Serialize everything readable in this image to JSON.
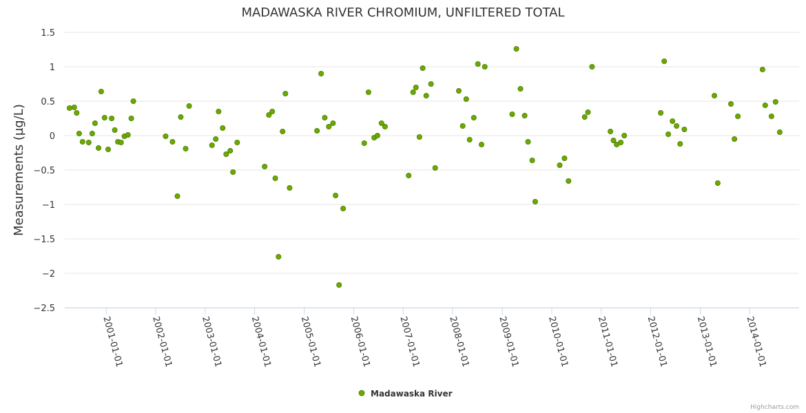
{
  "chart_data": {
    "type": "scatter",
    "title": "MADAWASKA RIVER CHROMIUM, UNFILTERED TOTAL",
    "xlabel": "",
    "ylabel": "Measurements (µg/L)",
    "ylim": [
      -2.5,
      1.5
    ],
    "yticks": [
      1.5,
      1,
      0.5,
      0,
      -0.5,
      -1,
      -1.5,
      -2,
      -2.5
    ],
    "ytick_labels": [
      "1.5",
      "1",
      "0.5",
      "0",
      "−0.5",
      "−1",
      "−1.5",
      "−2",
      "−2.5"
    ],
    "xlim": [
      "2000-03-01",
      "2014-12-31"
    ],
    "xticks": [
      "2001-01-01",
      "2002-01-01",
      "2003-01-01",
      "2004-01-01",
      "2005-01-01",
      "2006-01-01",
      "2007-01-01",
      "2008-01-01",
      "2009-01-01",
      "2010-01-01",
      "2011-01-01",
      "2012-01-01",
      "2013-01-01",
      "2014-01-01"
    ],
    "grid": true,
    "legend_position": "bottom-center",
    "color": "#6aaa00",
    "series": [
      {
        "name": "Madawaska River",
        "points": [
          [
            "2000-04-05",
            0.4
          ],
          [
            "2000-05-10",
            0.41
          ],
          [
            "2000-05-28",
            0.33
          ],
          [
            "2000-06-15",
            0.03
          ],
          [
            "2000-07-10",
            -0.09
          ],
          [
            "2000-08-25",
            -0.1
          ],
          [
            "2000-09-20",
            0.03
          ],
          [
            "2000-10-10",
            0.18
          ],
          [
            "2000-11-05",
            -0.18
          ],
          [
            "2000-11-25",
            0.64
          ],
          [
            "2000-12-20",
            0.26
          ],
          [
            "2001-01-15",
            -0.2
          ],
          [
            "2001-02-10",
            0.25
          ],
          [
            "2001-03-05",
            0.08
          ],
          [
            "2001-03-28",
            -0.09
          ],
          [
            "2001-04-20",
            -0.1
          ],
          [
            "2001-05-15",
            -0.01
          ],
          [
            "2001-06-10",
            0.01
          ],
          [
            "2001-07-05",
            0.25
          ],
          [
            "2001-07-20",
            0.5
          ],
          [
            "2002-03-15",
            -0.01
          ],
          [
            "2002-05-05",
            -0.09
          ],
          [
            "2002-06-10",
            -0.88
          ],
          [
            "2002-07-05",
            0.27
          ],
          [
            "2002-08-10",
            -0.19
          ],
          [
            "2002-09-05",
            0.43
          ],
          [
            "2003-02-20",
            -0.14
          ],
          [
            "2003-03-20",
            -0.05
          ],
          [
            "2003-04-10",
            0.35
          ],
          [
            "2003-05-10",
            0.11
          ],
          [
            "2003-06-05",
            -0.27
          ],
          [
            "2003-07-05",
            -0.22
          ],
          [
            "2003-07-25",
            -0.53
          ],
          [
            "2003-08-25",
            -0.1
          ],
          [
            "2004-03-15",
            -0.45
          ],
          [
            "2004-04-15",
            0.3
          ],
          [
            "2004-05-10",
            0.35
          ],
          [
            "2004-06-01",
            -0.62
          ],
          [
            "2004-06-25",
            -1.76
          ],
          [
            "2004-07-25",
            0.06
          ],
          [
            "2004-08-15",
            0.61
          ],
          [
            "2004-09-15",
            -0.76
          ],
          [
            "2005-04-05",
            0.07
          ],
          [
            "2005-05-05",
            0.9
          ],
          [
            "2005-06-01",
            0.26
          ],
          [
            "2005-07-01",
            0.13
          ],
          [
            "2005-08-01",
            0.18
          ],
          [
            "2005-08-20",
            -0.87
          ],
          [
            "2005-09-15",
            -2.17
          ],
          [
            "2005-10-15",
            -1.06
          ],
          [
            "2006-03-20",
            -0.11
          ],
          [
            "2006-04-20",
            0.63
          ],
          [
            "2006-06-01",
            -0.03
          ],
          [
            "2006-06-25",
            0.0
          ],
          [
            "2006-07-25",
            0.18
          ],
          [
            "2006-08-20",
            0.13
          ],
          [
            "2007-02-10",
            -0.58
          ],
          [
            "2007-03-15",
            0.63
          ],
          [
            "2007-04-05",
            0.7
          ],
          [
            "2007-05-01",
            -0.02
          ],
          [
            "2007-05-25",
            0.98
          ],
          [
            "2007-06-20",
            0.58
          ],
          [
            "2007-07-25",
            0.75
          ],
          [
            "2007-08-25",
            -0.47
          ],
          [
            "2008-02-15",
            0.65
          ],
          [
            "2008-03-15",
            0.14
          ],
          [
            "2008-04-10",
            0.53
          ],
          [
            "2008-05-05",
            -0.06
          ],
          [
            "2008-06-05",
            0.26
          ],
          [
            "2008-07-05",
            1.04
          ],
          [
            "2008-08-01",
            -0.13
          ],
          [
            "2008-08-25",
            1.0
          ],
          [
            "2009-03-15",
            0.31
          ],
          [
            "2009-04-15",
            1.26
          ],
          [
            "2009-05-15",
            0.68
          ],
          [
            "2009-06-15",
            0.29
          ],
          [
            "2009-07-10",
            -0.09
          ],
          [
            "2009-08-10",
            -0.36
          ],
          [
            "2009-09-01",
            -0.96
          ],
          [
            "2010-03-01",
            -0.43
          ],
          [
            "2010-04-05",
            -0.33
          ],
          [
            "2010-05-05",
            -0.66
          ],
          [
            "2010-09-01",
            0.27
          ],
          [
            "2010-09-25",
            0.34
          ],
          [
            "2010-10-25",
            1.0
          ],
          [
            "2011-03-10",
            0.06
          ],
          [
            "2011-04-01",
            -0.07
          ],
          [
            "2011-04-25",
            -0.13
          ],
          [
            "2011-05-25",
            -0.1
          ],
          [
            "2011-06-20",
            0.0
          ],
          [
            "2012-03-15",
            0.33
          ],
          [
            "2012-04-10",
            1.08
          ],
          [
            "2012-05-10",
            0.02
          ],
          [
            "2012-06-10",
            0.21
          ],
          [
            "2012-07-10",
            0.14
          ],
          [
            "2012-08-05",
            -0.12
          ],
          [
            "2012-09-05",
            0.09
          ],
          [
            "2013-04-15",
            0.58
          ],
          [
            "2013-05-10",
            -0.69
          ],
          [
            "2013-08-15",
            0.46
          ],
          [
            "2013-09-10",
            -0.05
          ],
          [
            "2013-10-05",
            0.28
          ],
          [
            "2014-04-05",
            0.96
          ],
          [
            "2014-04-25",
            0.44
          ],
          [
            "2014-06-10",
            0.28
          ],
          [
            "2014-07-10",
            0.49
          ],
          [
            "2014-08-10",
            0.05
          ]
        ]
      }
    ]
  },
  "credits": "Highcharts.com"
}
